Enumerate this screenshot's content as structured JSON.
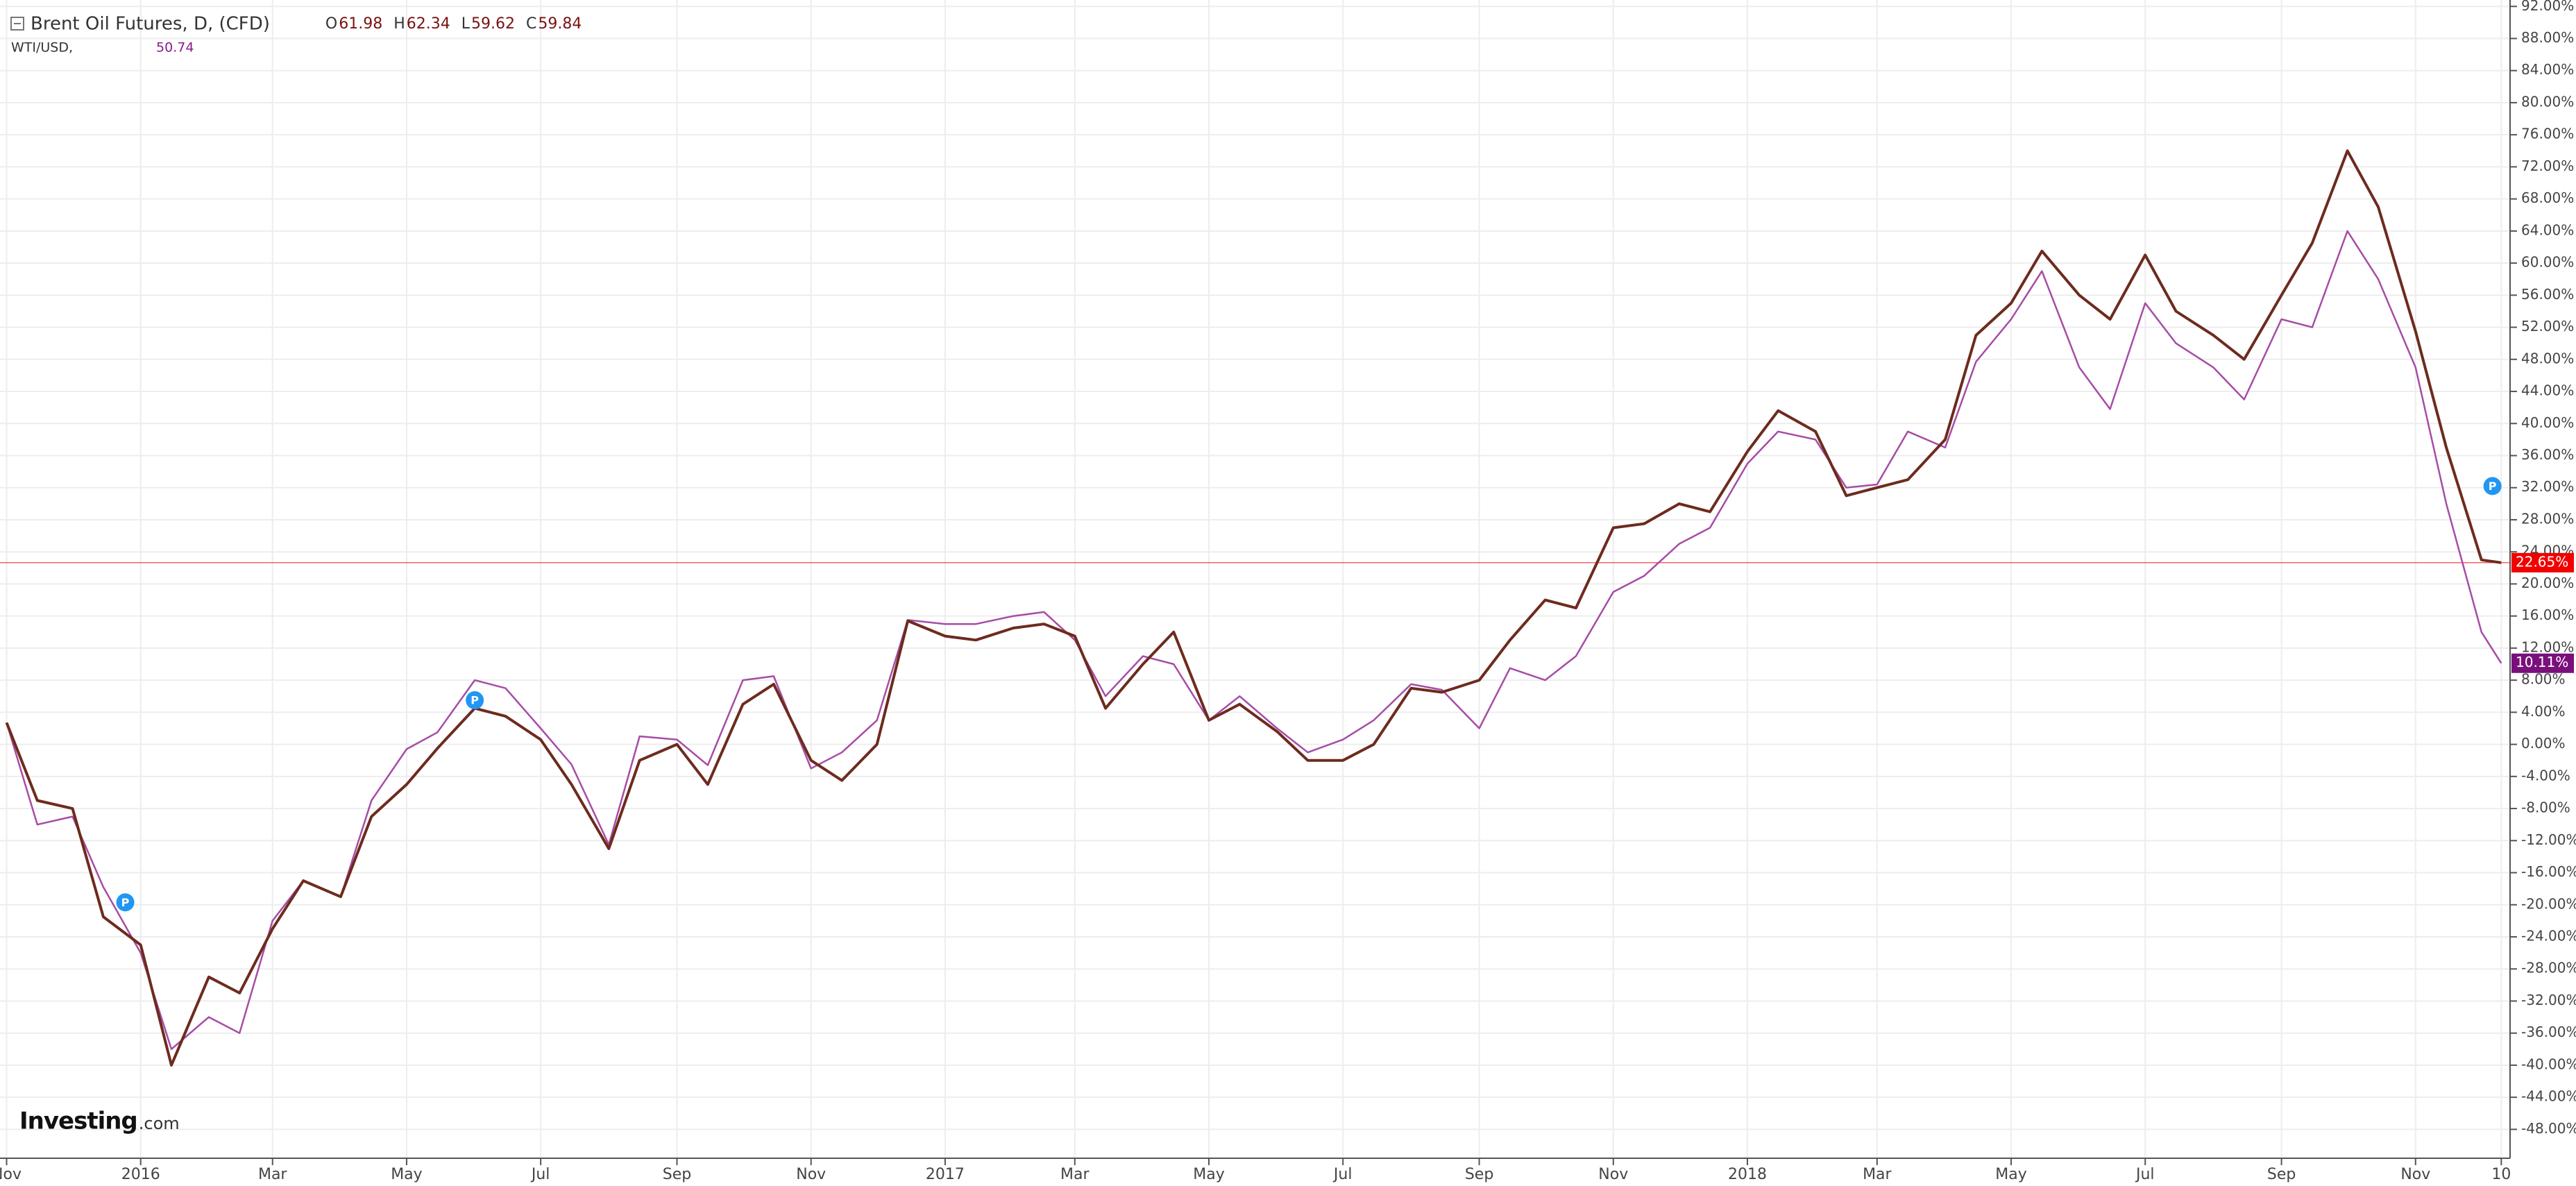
{
  "chart_data": {
    "type": "line",
    "header": {
      "title": "Brent Oil Futures, D, (CFD)",
      "ohlc": [
        {
          "label": "O",
          "value": 61.98
        },
        {
          "label": "H",
          "value": 62.34
        },
        {
          "label": "L",
          "value": 59.62
        },
        {
          "label": "C",
          "value": 59.84
        }
      ],
      "compare": {
        "name": "WTI/USD,",
        "value": 50.74
      }
    },
    "x": [
      "2015-11-01",
      "2015-11-15",
      "2015-12-01",
      "2015-12-15",
      "2016-01-01",
      "2016-01-15",
      "2016-02-01",
      "2016-02-15",
      "2016-03-01",
      "2016-03-15",
      "2016-04-01",
      "2016-04-15",
      "2016-05-01",
      "2016-05-15",
      "2016-06-01",
      "2016-06-15",
      "2016-07-01",
      "2016-07-15",
      "2016-08-01",
      "2016-08-15",
      "2016-09-01",
      "2016-09-15",
      "2016-10-01",
      "2016-10-15",
      "2016-11-01",
      "2016-11-15",
      "2016-12-01",
      "2016-12-15",
      "2017-01-01",
      "2017-01-15",
      "2017-02-01",
      "2017-02-15",
      "2017-03-01",
      "2017-03-15",
      "2017-04-01",
      "2017-04-15",
      "2017-05-01",
      "2017-05-15",
      "2017-06-01",
      "2017-06-15",
      "2017-07-01",
      "2017-07-15",
      "2017-08-01",
      "2017-08-15",
      "2017-09-01",
      "2017-09-15",
      "2017-10-01",
      "2017-10-15",
      "2017-11-01",
      "2017-11-15",
      "2017-12-01",
      "2017-12-15",
      "2018-01-01",
      "2018-01-15",
      "2018-02-01",
      "2018-02-15",
      "2018-03-01",
      "2018-03-15",
      "2018-04-01",
      "2018-04-15",
      "2018-05-01",
      "2018-05-15",
      "2018-06-01",
      "2018-06-15",
      "2018-07-01",
      "2018-07-15",
      "2018-08-01",
      "2018-08-15",
      "2018-09-01",
      "2018-09-15",
      "2018-10-01",
      "2018-10-15",
      "2018-11-01",
      "2018-11-15",
      "2018-12-01",
      "2018-12-10"
    ],
    "series": [
      {
        "name": "Brent Oil Futures, D, (CFD)",
        "color": "#6d2b1e",
        "values": [
          2.7,
          -7,
          -8,
          -21.5,
          -25,
          -40,
          -29,
          -31,
          -23,
          -17,
          -19,
          -9,
          -5,
          -0.5,
          4.5,
          3.5,
          0.6,
          -5,
          -13,
          -2,
          0,
          -5,
          5,
          7.5,
          -2,
          -4.5,
          0,
          15.4,
          13.5,
          13,
          14.5,
          15,
          13.5,
          4.5,
          10,
          14,
          3,
          5,
          1.6,
          -2,
          -2,
          0,
          7,
          6.5,
          8,
          13,
          18,
          17,
          27,
          27.5,
          30,
          29,
          36.5,
          41.6,
          39,
          31,
          32,
          33,
          38,
          51,
          55,
          61.5,
          56,
          53,
          61,
          54,
          51,
          48,
          56,
          62.5,
          74,
          67,
          51.5,
          37,
          23,
          22.65
        ]
      },
      {
        "name": "WTI/USD,",
        "color": "#a64ca6",
        "values": [
          2.7,
          -10,
          -9,
          -17.8,
          -26,
          -38,
          -34,
          -36,
          -22,
          -17,
          -19,
          -7,
          -0.6,
          1.5,
          8,
          7,
          2,
          -2.5,
          -12.5,
          1,
          0.6,
          -2.6,
          8,
          8.5,
          -3,
          -1,
          3,
          15.5,
          15,
          15,
          16,
          16.5,
          13,
          6,
          11,
          10,
          3,
          6,
          2,
          -1,
          0.6,
          3,
          7.5,
          6.8,
          2,
          9.5,
          8,
          11,
          19,
          21,
          25,
          27,
          35,
          39,
          38,
          32,
          32.4,
          39,
          37,
          47.7,
          53,
          59,
          47,
          41.8,
          55,
          50,
          47,
          43,
          53,
          52,
          64,
          58,
          47,
          30,
          14,
          10.11
        ]
      }
    ],
    "price_labels": [
      {
        "value": 22.65,
        "label": "22.65%",
        "color": "#f20000"
      },
      {
        "value": 10.11,
        "label": "10.11%",
        "color": "#7b0f7b"
      }
    ],
    "annotations": [
      {
        "text": "P",
        "x": "2015-12-25",
        "y": -19.7
      },
      {
        "text": "P",
        "x": "2016-06-01",
        "y": 5.5
      },
      {
        "text": "P",
        "x": "2018-12-06",
        "y": 32.2
      }
    ],
    "logo": {
      "name": "Investing",
      "suffix": ".com"
    },
    "xlim": [
      "2015-10-29",
      "2018-12-14"
    ],
    "xticks": [
      {
        "value": "2015-11-01",
        "label": "Nov"
      },
      {
        "value": "2016-01-01",
        "label": "2016"
      },
      {
        "value": "2016-03-01",
        "label": "Mar"
      },
      {
        "value": "2016-05-01",
        "label": "May"
      },
      {
        "value": "2016-07-01",
        "label": "Jul"
      },
      {
        "value": "2016-09-01",
        "label": "Sep"
      },
      {
        "value": "2016-11-01",
        "label": "Nov"
      },
      {
        "value": "2017-01-01",
        "label": "2017"
      },
      {
        "value": "2017-03-01",
        "label": "Mar"
      },
      {
        "value": "2017-05-01",
        "label": "May"
      },
      {
        "value": "2017-07-01",
        "label": "Jul"
      },
      {
        "value": "2017-09-01",
        "label": "Sep"
      },
      {
        "value": "2017-11-01",
        "label": "Nov"
      },
      {
        "value": "2018-01-01",
        "label": "2018"
      },
      {
        "value": "2018-03-01",
        "label": "Mar"
      },
      {
        "value": "2018-05-01",
        "label": "May"
      },
      {
        "value": "2018-07-01",
        "label": "Jul"
      },
      {
        "value": "2018-09-01",
        "label": "Sep"
      },
      {
        "value": "2018-11-01",
        "label": "Nov"
      },
      {
        "value": "2018-12-10",
        "label": "10"
      }
    ],
    "ylim": [
      -51.6,
      92.8
    ],
    "yticks": [
      {
        "value": 92,
        "label": "92.00%"
      },
      {
        "value": 88,
        "label": "88.00%"
      },
      {
        "value": 84,
        "label": "84.00%"
      },
      {
        "value": 80,
        "label": "80.00%"
      },
      {
        "value": 76,
        "label": "76.00%"
      },
      {
        "value": 72,
        "label": "72.00%"
      },
      {
        "value": 68,
        "label": "68.00%"
      },
      {
        "value": 64,
        "label": "64.00%"
      },
      {
        "value": 60,
        "label": "60.00%"
      },
      {
        "value": 56,
        "label": "56.00%"
      },
      {
        "value": 52,
        "label": "52.00%"
      },
      {
        "value": 48,
        "label": "48.00%"
      },
      {
        "value": 44,
        "label": "44.00%"
      },
      {
        "value": 40,
        "label": "40.00%"
      },
      {
        "value": 36,
        "label": "36.00%"
      },
      {
        "value": 32,
        "label": "32.00%"
      },
      {
        "value": 28,
        "label": "28.00%"
      },
      {
        "value": 24,
        "label": "24.00%"
      },
      {
        "value": 20,
        "label": "20.00%"
      },
      {
        "value": 16,
        "label": "16.00%"
      },
      {
        "value": 12,
        "label": "12.00%"
      },
      {
        "value": 8,
        "label": "8.00%"
      },
      {
        "value": 4,
        "label": "4.00%"
      },
      {
        "value": 0,
        "label": "0.00%"
      },
      {
        "value": -4,
        "label": "-4.00%"
      },
      {
        "value": -8,
        "label": "-8.00%"
      },
      {
        "value": -12,
        "label": "-12.00%"
      },
      {
        "value": -16,
        "label": "-16.00%"
      },
      {
        "value": -20,
        "label": "-20.00%"
      },
      {
        "value": -24,
        "label": "-24.00%"
      },
      {
        "value": -28,
        "label": "-28.00%"
      },
      {
        "value": -32,
        "label": "-32.00%"
      },
      {
        "value": -36,
        "label": "-36.00%"
      },
      {
        "value": -40,
        "label": "-40.00%"
      },
      {
        "value": -44,
        "label": "-44.00%"
      },
      {
        "value": -48,
        "label": "-48.00%"
      }
    ],
    "grid": true
  }
}
